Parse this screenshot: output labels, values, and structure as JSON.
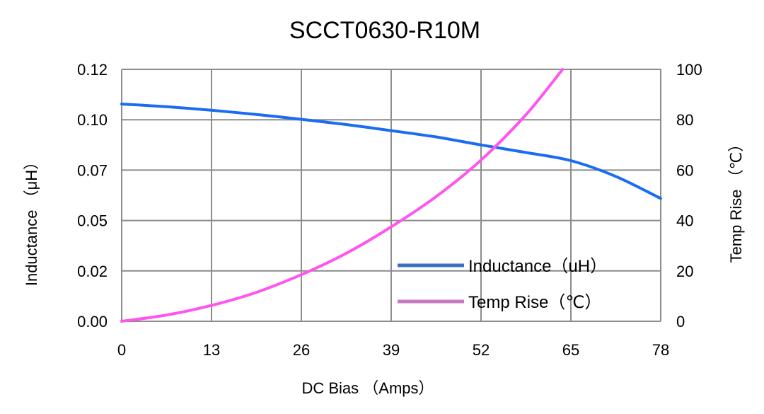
{
  "chart_data": {
    "type": "line",
    "title": "SCCT0630-R10M",
    "xlabel": "DC Bias （Amps）",
    "ylabel_left": "Inductance （μH）",
    "ylabel_right": "Temp Rise （℃）",
    "x_ticks": [
      "0",
      "13",
      "26",
      "39",
      "52",
      "65",
      "78"
    ],
    "y_left_ticks": [
      "0.00",
      "0.02",
      "0.05",
      "0.07",
      "0.10",
      "0.12"
    ],
    "y_right_ticks": [
      "0",
      "20",
      "40",
      "60",
      "80",
      "100"
    ],
    "xlim": [
      0,
      78
    ],
    "ylim_left": [
      0,
      0.12
    ],
    "ylim_right": [
      0,
      100
    ],
    "grid": true,
    "legend_position": "bottom-right",
    "series": [
      {
        "name": "Inductance（uH）",
        "axis": "left",
        "color": "#1a6cf0",
        "legend_color": "#3a6fc4",
        "x": [
          0,
          6.5,
          13,
          19.5,
          26,
          32.5,
          39,
          45.5,
          52,
          58.5,
          65,
          71.5,
          78
        ],
        "y": [
          0.1035,
          0.1022,
          0.1005,
          0.0985,
          0.0962,
          0.0937,
          0.0908,
          0.0878,
          0.084,
          0.0804,
          0.0765,
          0.069,
          0.0585
        ]
      },
      {
        "name": "Temp Rise（℃）",
        "axis": "right",
        "color": "#ff55ee",
        "legend_color": "#c678c0",
        "x": [
          0,
          6.5,
          13,
          19.5,
          26,
          32.5,
          39,
          45.5,
          52,
          58.5,
          63.8
        ],
        "y": [
          0,
          2.5,
          6.3,
          11.5,
          18.5,
          27,
          37.5,
          49.5,
          64,
          82,
          100
        ]
      }
    ]
  }
}
